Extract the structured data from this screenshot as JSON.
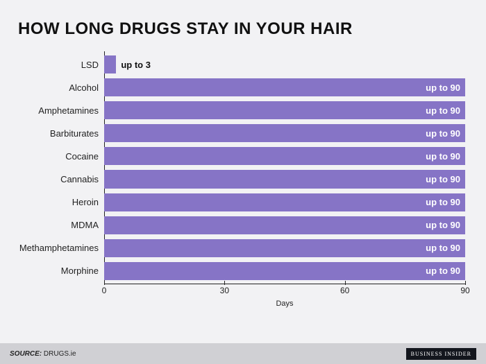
{
  "title": "HOW LONG DRUGS STAY IN YOUR HAIR",
  "title_fontsize": 24,
  "background_color": "#f2f2f4",
  "chart": {
    "type": "bar-horizontal",
    "bar_color": "#8674c6",
    "text_color": "#222222",
    "value_label_color_inside": "#ffffff",
    "value_label_color_outside": "#111111",
    "axis_color": "#222222",
    "xlim": [
      0,
      90
    ],
    "xticks": [
      0,
      30,
      60,
      90
    ],
    "xlabel": "Days",
    "label_fontsize": 13,
    "tick_fontsize": 12,
    "inside_threshold": 15,
    "items": [
      {
        "label": "LSD",
        "value": 3,
        "value_label": "up to 3"
      },
      {
        "label": "Alcohol",
        "value": 90,
        "value_label": "up to 90"
      },
      {
        "label": "Amphetamines",
        "value": 90,
        "value_label": "up to 90"
      },
      {
        "label": "Barbiturates",
        "value": 90,
        "value_label": "up to 90"
      },
      {
        "label": "Cocaine",
        "value": 90,
        "value_label": "up to 90"
      },
      {
        "label": "Cannabis",
        "value": 90,
        "value_label": "up to 90"
      },
      {
        "label": "Heroin",
        "value": 90,
        "value_label": "up to 90"
      },
      {
        "label": "MDMA",
        "value": 90,
        "value_label": "up to 90"
      },
      {
        "label": "Methamphetamines",
        "value": 90,
        "value_label": "up to 90"
      },
      {
        "label": "Morphine",
        "value": 90,
        "value_label": "up to 90"
      }
    ]
  },
  "footer": {
    "source_prefix": "SOURCE:",
    "source_name": "DRUGS.ie",
    "brand": "BUSINESS INSIDER",
    "footer_bg": "#d0d0d4",
    "brand_bg": "#13161d"
  }
}
